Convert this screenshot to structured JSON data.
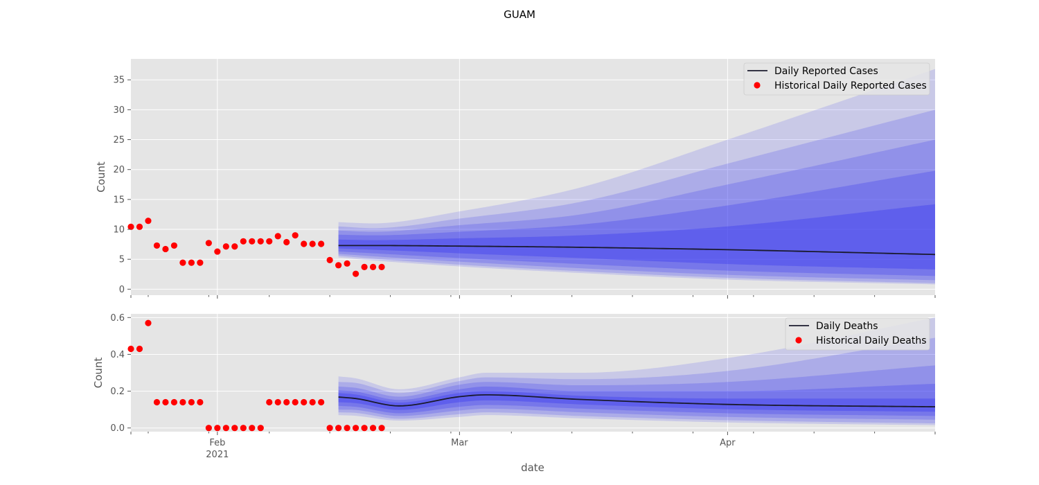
{
  "title": "GUAM",
  "xlabel": "date",
  "x_ticks": [
    {
      "date": "2021-02-01",
      "label": "Feb",
      "sublabel": "2021"
    },
    {
      "date": "2021-03-01",
      "label": "Mar",
      "sublabel": ""
    },
    {
      "date": "2021-04-01",
      "label": "Apr",
      "sublabel": ""
    }
  ],
  "colors": {
    "background": "#e5e5e5",
    "grid": "#ffffff",
    "forecast_line": "#1a1a2e",
    "history_points": "#ff0000",
    "fan": "#3a3af0"
  },
  "chart_data": [
    {
      "type": "line",
      "name": "cases",
      "ylabel": "Count",
      "xlim": [
        "2021-01-22",
        "2021-04-25"
      ],
      "ylim": [
        -1,
        38.5
      ],
      "yticks": [
        0,
        5,
        10,
        15,
        20,
        25,
        30,
        35
      ],
      "grid": true,
      "legend_position": "top-right",
      "legend": [
        "Daily Reported Cases",
        "Historical Daily Reported Cases"
      ],
      "historical": {
        "name": "Historical Daily Reported Cases",
        "start": "2021-01-22",
        "values": [
          10.43,
          10.43,
          11.43,
          7.29,
          6.71,
          7.29,
          4.43,
          4.43,
          4.43,
          7.71,
          6.29,
          7.14,
          7.14,
          8.0,
          8.0,
          8.0,
          8.0,
          8.86,
          7.86,
          9.0,
          7.57,
          7.57,
          7.57,
          4.86,
          4.0,
          4.29,
          2.57,
          3.71,
          3.71,
          3.71
        ]
      },
      "forecast": {
        "name": "Daily Reported Cases",
        "x": [
          "2021-02-15",
          "2021-02-19",
          "2021-03-01",
          "2021-03-15",
          "2021-04-01",
          "2021-04-25"
        ],
        "median": [
          7.3,
          7.3,
          7.2,
          7.0,
          6.6,
          5.8
        ],
        "bands": [
          {
            "level": "outer",
            "lower": [
              5.3,
              4.8,
              3.8,
              2.7,
              1.6,
              0.8
            ],
            "upper": [
              11.2,
              11.0,
              13.0,
              17.0,
              25.0,
              36.8
            ]
          },
          {
            "level": "80",
            "lower": [
              5.6,
              5.1,
              4.1,
              3.0,
              1.9,
              1.0
            ],
            "upper": [
              10.5,
              10.2,
              11.8,
              14.6,
              21.0,
              30.0
            ]
          },
          {
            "level": "60",
            "lower": [
              5.9,
              5.5,
              4.6,
              3.5,
              2.4,
              1.5
            ],
            "upper": [
              9.8,
              9.6,
              10.7,
              12.5,
              17.5,
              25.0
            ]
          },
          {
            "level": "40",
            "lower": [
              6.3,
              6.0,
              5.2,
              4.2,
              3.1,
              2.2
            ],
            "upper": [
              9.1,
              9.0,
              9.6,
              10.8,
              14.0,
              19.8
            ]
          },
          {
            "level": "20",
            "lower": [
              6.8,
              6.6,
              6.0,
              5.2,
              4.2,
              3.3
            ],
            "upper": [
              8.3,
              8.2,
              8.5,
              9.0,
              10.5,
              14.2
            ]
          }
        ]
      }
    },
    {
      "type": "line",
      "name": "deaths",
      "ylabel": "Count",
      "xlim": [
        "2021-01-22",
        "2021-04-25"
      ],
      "ylim": [
        -0.02,
        0.62
      ],
      "yticks": [
        0.0,
        0.2,
        0.4,
        0.6
      ],
      "ytick_labels": [
        "0.0",
        "0.2",
        "0.4",
        "0.6"
      ],
      "grid": true,
      "legend_position": "top-right",
      "legend": [
        "Daily Deaths",
        "Historical Daily Deaths"
      ],
      "historical": {
        "name": "Historical Daily Deaths",
        "start": "2021-01-22",
        "values": [
          0.43,
          0.43,
          0.57,
          0.14,
          0.14,
          0.14,
          0.14,
          0.14,
          0.14,
          0.0,
          0.0,
          0.0,
          0.0,
          0.0,
          0.0,
          0.0,
          0.14,
          0.14,
          0.14,
          0.14,
          0.14,
          0.14,
          0.14,
          0.0,
          0.0,
          0.0,
          0.0,
          0.0,
          0.0,
          0.0
        ]
      },
      "forecast": {
        "name": "Daily Deaths",
        "x": [
          "2021-02-15",
          "2021-02-17",
          "2021-02-22",
          "2021-03-01",
          "2021-03-04",
          "2021-03-15",
          "2021-04-01",
          "2021-04-25"
        ],
        "median": [
          0.168,
          0.16,
          0.12,
          0.17,
          0.18,
          0.155,
          0.128,
          0.115
        ],
        "bands": [
          {
            "level": "outer",
            "lower": [
              0.07,
              0.066,
              0.04,
              0.06,
              0.07,
              0.052,
              0.03,
              0.015
            ],
            "upper": [
              0.28,
              0.27,
              0.21,
              0.275,
              0.3,
              0.3,
              0.38,
              0.6
            ]
          },
          {
            "level": "80",
            "lower": [
              0.085,
              0.082,
              0.05,
              0.075,
              0.085,
              0.065,
              0.042,
              0.025
            ],
            "upper": [
              0.25,
              0.245,
              0.19,
              0.255,
              0.275,
              0.265,
              0.31,
              0.49
            ]
          },
          {
            "level": "60",
            "lower": [
              0.1,
              0.098,
              0.065,
              0.095,
              0.105,
              0.085,
              0.06,
              0.045
            ],
            "upper": [
              0.225,
              0.218,
              0.17,
              0.235,
              0.25,
              0.232,
              0.25,
              0.34
            ]
          },
          {
            "level": "40",
            "lower": [
              0.12,
              0.115,
              0.08,
              0.115,
              0.125,
              0.105,
              0.08,
              0.065
            ],
            "upper": [
              0.205,
              0.198,
              0.152,
              0.21,
              0.225,
              0.2,
              0.2,
              0.24
            ]
          },
          {
            "level": "20",
            "lower": [
              0.14,
              0.135,
              0.098,
              0.14,
              0.15,
              0.128,
              0.102,
              0.088
            ],
            "upper": [
              0.19,
              0.182,
              0.138,
              0.19,
              0.2,
              0.175,
              0.16,
              0.16
            ]
          }
        ]
      }
    }
  ]
}
